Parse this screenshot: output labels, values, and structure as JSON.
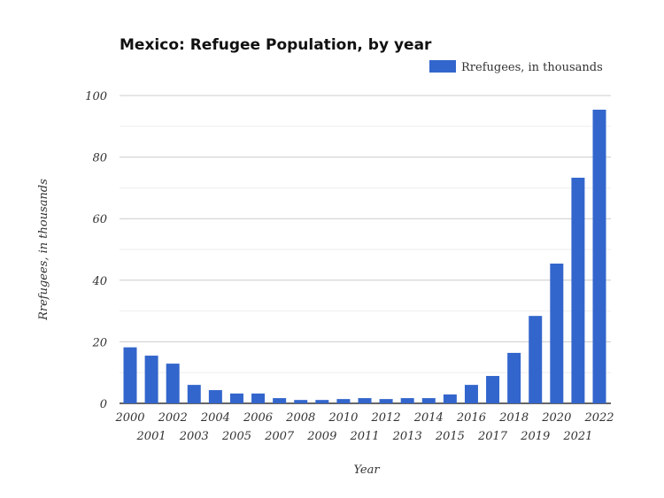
{
  "chart_data": {
    "type": "bar",
    "title": "Mexico: Refugee Population, by year",
    "xlabel": "Year",
    "ylabel": "Rrefugees, in thousands",
    "legend": {
      "position": "top-right",
      "entries": [
        "Rrefugees, in thousands"
      ]
    },
    "ylim": [
      0,
      100
    ],
    "yticks": [
      0,
      20,
      40,
      60,
      80,
      100
    ],
    "grid": true,
    "color": "#3366cc",
    "categories": [
      "2000",
      "2001",
      "2002",
      "2003",
      "2004",
      "2005",
      "2006",
      "2007",
      "2008",
      "2009",
      "2010",
      "2011",
      "2012",
      "2013",
      "2014",
      "2015",
      "2016",
      "2017",
      "2018",
      "2019",
      "2020",
      "2021",
      "2022"
    ],
    "series": [
      {
        "name": "Rrefugees, in thousands",
        "values": [
          18.2,
          15.5,
          12.9,
          6.0,
          4.3,
          3.2,
          3.2,
          1.7,
          1.1,
          1.1,
          1.4,
          1.7,
          1.4,
          1.7,
          1.7,
          2.9,
          6.0,
          8.9,
          16.4,
          28.4,
          45.4,
          73.3,
          95.4
        ]
      }
    ]
  }
}
